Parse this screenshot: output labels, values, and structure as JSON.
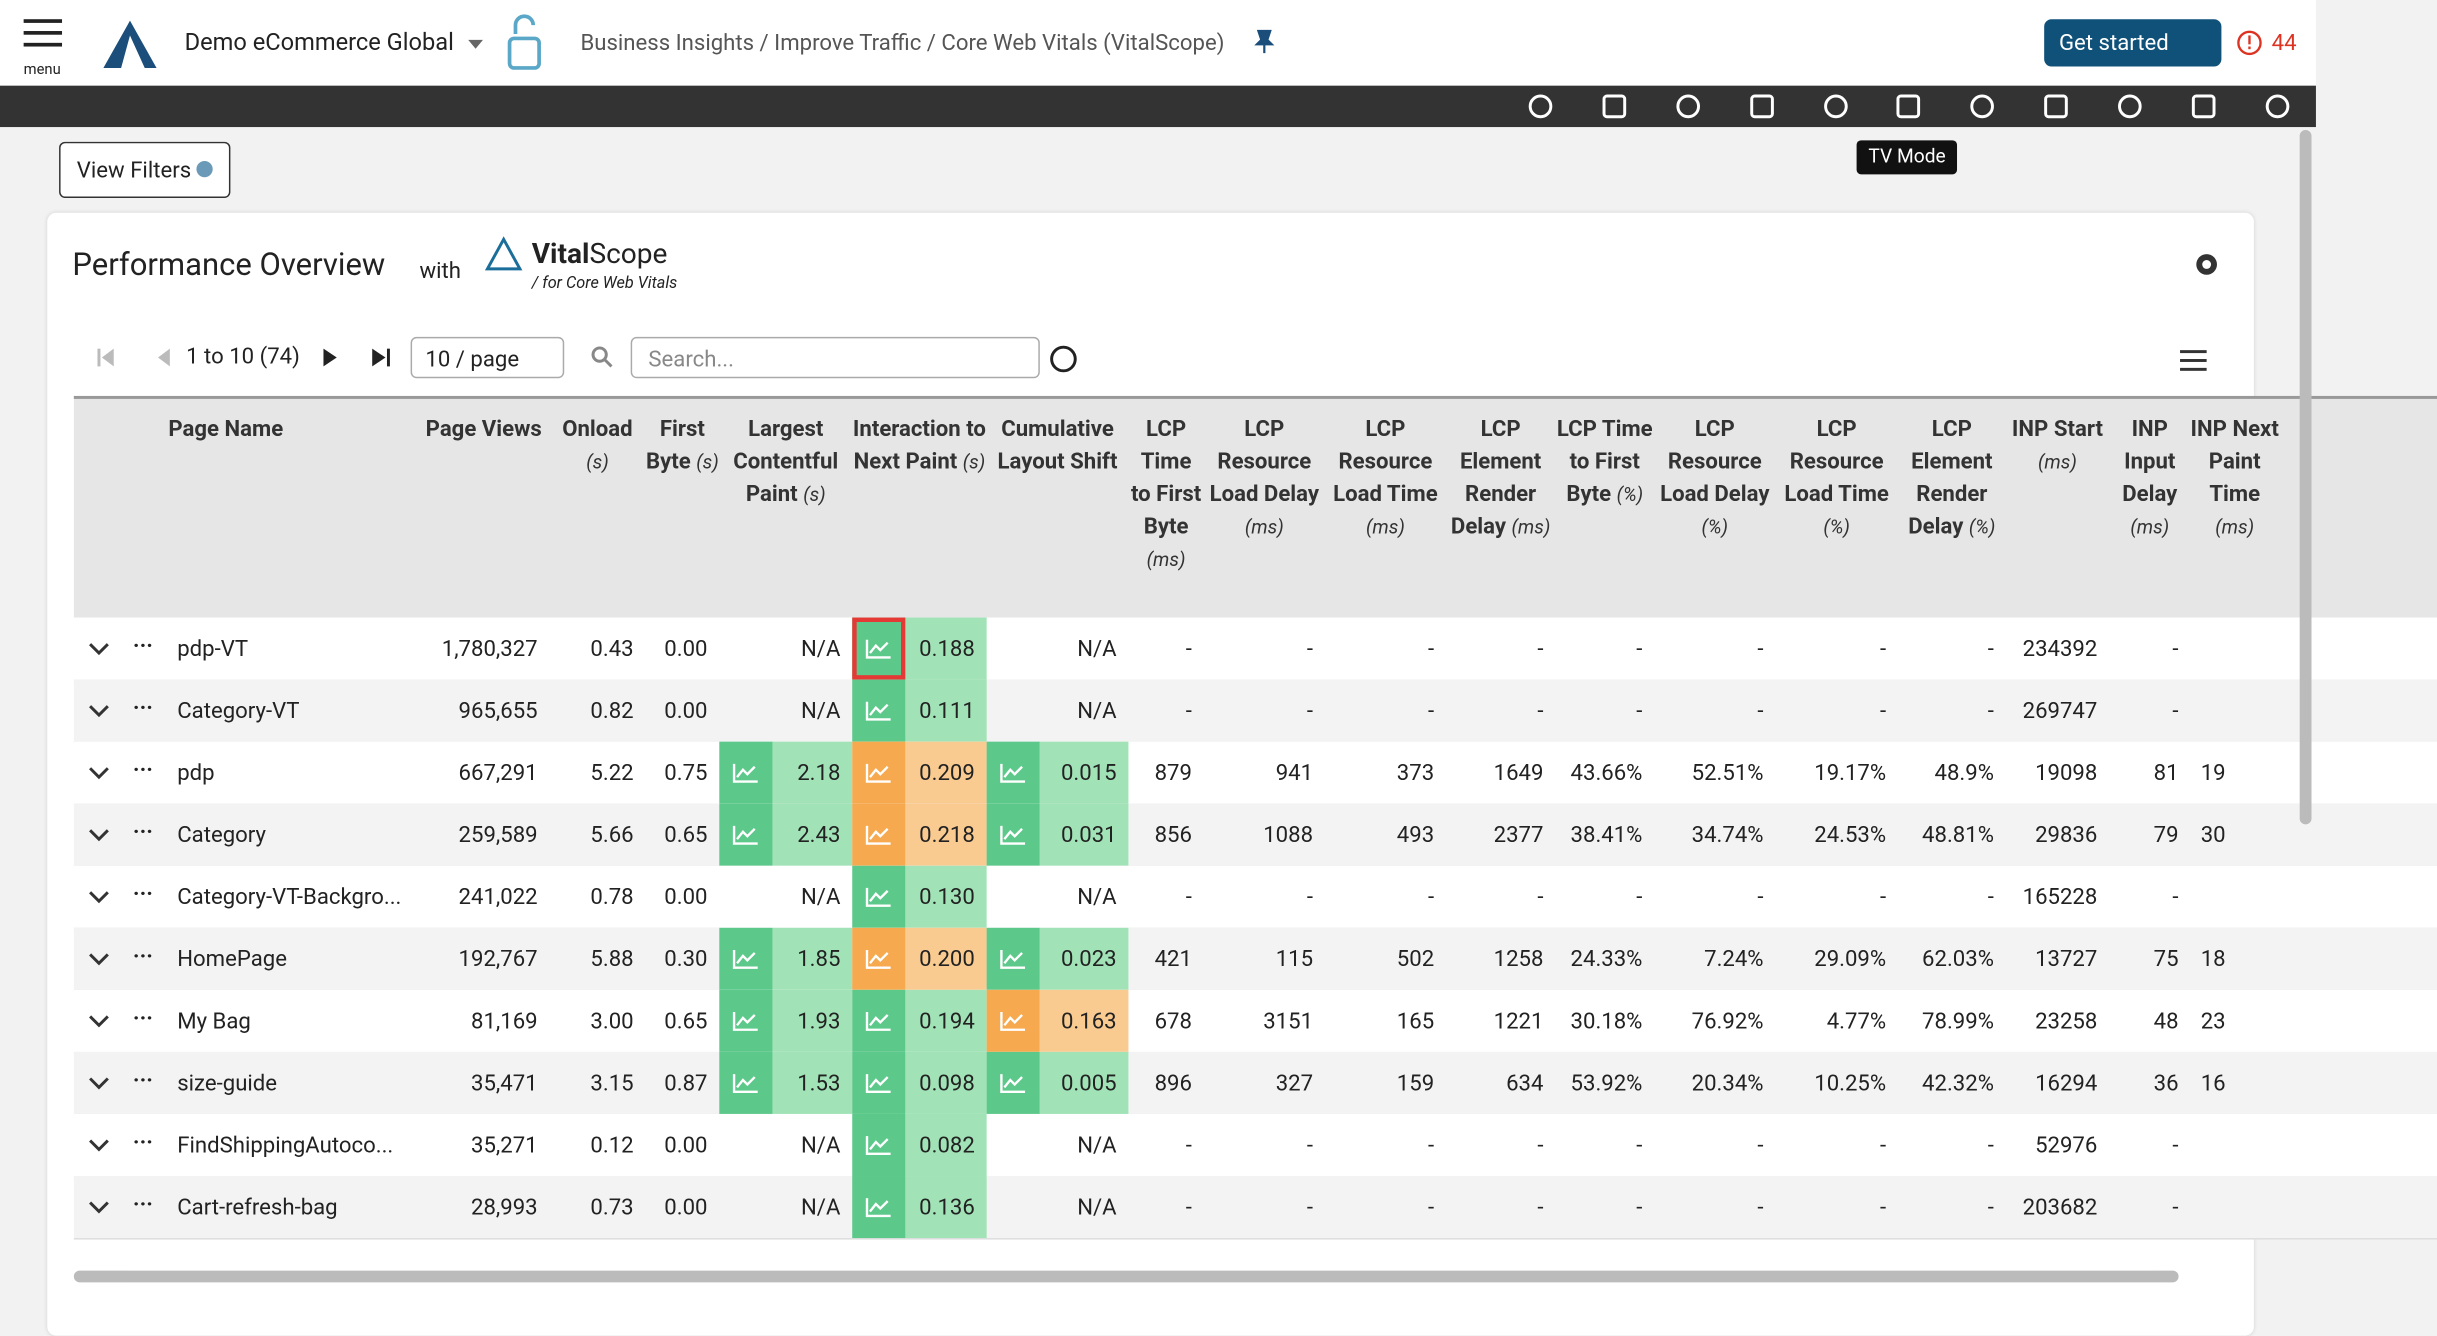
{
  "header": {
    "menu_label": "menu",
    "org": "Demo eCommerce Global",
    "breadcrumb": "Business Insights / Improve Traffic / Core Web Vitals (VitalScope)",
    "get_started": "Get started",
    "alert_count": "44"
  },
  "toolbar": {
    "tooltip": "TV Mode"
  },
  "view_filters": "View Filters",
  "panel": {
    "title": "Performance Overview",
    "with": "with",
    "brand_bold": "Vital",
    "brand_light": "Scope",
    "brand_sub": "/ for Core Web Vitals"
  },
  "pagination": {
    "range": "1 to 10 (74)",
    "page_size": "10 / page",
    "search_placeholder": "Search..."
  },
  "table": {
    "columns": [
      {
        "label": "Page Name"
      },
      {
        "label": "Page Views"
      },
      {
        "label": "Onload",
        "unit": "(s)"
      },
      {
        "label": "First Byte",
        "unit": "(s)"
      },
      {
        "label": "Largest Contentful Paint",
        "unit": "(s)"
      },
      {
        "label": "Interaction to Next Paint",
        "unit": "(s)"
      },
      {
        "label": "Cumulative Layout Shift"
      },
      {
        "label": "LCP Time to First Byte",
        "unit": "(ms)"
      },
      {
        "label": "LCP Resource Load Delay",
        "unit": "(ms)"
      },
      {
        "label": "LCP Resource Load Time",
        "unit": "(ms)"
      },
      {
        "label": "LCP Element Render Delay",
        "unit": "(ms)"
      },
      {
        "label": "LCP Time to First Byte",
        "unit": "(%)"
      },
      {
        "label": "LCP Resource Load Delay",
        "unit": "(%)"
      },
      {
        "label": "LCP Resource Load Time",
        "unit": "(%)"
      },
      {
        "label": "LCP Element Render Delay",
        "unit": "(%)"
      },
      {
        "label": "INP Start",
        "unit": "(ms)"
      },
      {
        "label": "INP Input Delay",
        "unit": "(ms)"
      },
      {
        "label": "INP Next Paint Time",
        "unit": "(ms)"
      }
    ],
    "rows": [
      {
        "name": "pdp-VT",
        "cells": [
          "1,780,327",
          "0.43",
          "0.00",
          "N/A",
          "0.188",
          "N/A",
          "-",
          "-",
          "-",
          "-",
          "-",
          "-",
          "-",
          "-",
          "234392",
          "-",
          null
        ],
        "status": {
          "inp": "good"
        }
      },
      {
        "name": "Category-VT",
        "cells": [
          "965,655",
          "0.82",
          "0.00",
          "N/A",
          "0.111",
          "N/A",
          "-",
          "-",
          "-",
          "-",
          "-",
          "-",
          "-",
          "-",
          "269747",
          "-",
          null
        ],
        "status": {
          "inp": "good"
        }
      },
      {
        "name": "pdp",
        "cells": [
          "667,291",
          "5.22",
          "0.75",
          "2.18",
          "0.209",
          "0.015",
          "879",
          "941",
          "373",
          "1649",
          "43.66%",
          "52.51%",
          "19.17%",
          "48.9%",
          "19098",
          "81",
          "19"
        ],
        "status": {
          "lcp": "good",
          "inp": "warn",
          "cls": "good"
        }
      },
      {
        "name": "Category",
        "cells": [
          "259,589",
          "5.66",
          "0.65",
          "2.43",
          "0.218",
          "0.031",
          "856",
          "1088",
          "493",
          "2377",
          "38.41%",
          "34.74%",
          "24.53%",
          "48.81%",
          "29836",
          "79",
          "30"
        ],
        "status": {
          "lcp": "good",
          "inp": "warn",
          "cls": "good"
        }
      },
      {
        "name": "Category-VT-Backgro...",
        "cells": [
          "241,022",
          "0.78",
          "0.00",
          "N/A",
          "0.130",
          "N/A",
          "-",
          "-",
          "-",
          "-",
          "-",
          "-",
          "-",
          "-",
          "165228",
          "-",
          null
        ],
        "status": {
          "inp": "good"
        }
      },
      {
        "name": "HomePage",
        "cells": [
          "192,767",
          "5.88",
          "0.30",
          "1.85",
          "0.200",
          "0.023",
          "421",
          "115",
          "502",
          "1258",
          "24.33%",
          "7.24%",
          "29.09%",
          "62.03%",
          "13727",
          "75",
          "18"
        ],
        "status": {
          "lcp": "good",
          "inp": "warn",
          "cls": "good"
        }
      },
      {
        "name": "My Bag",
        "cells": [
          "81,169",
          "3.00",
          "0.65",
          "1.93",
          "0.194",
          "0.163",
          "678",
          "3151",
          "165",
          "1221",
          "30.18%",
          "76.92%",
          "4.77%",
          "78.99%",
          "23258",
          "48",
          "23"
        ],
        "status": {
          "lcp": "good",
          "inp": "good",
          "cls": "warn"
        }
      },
      {
        "name": "size-guide",
        "cells": [
          "35,471",
          "3.15",
          "0.87",
          "1.53",
          "0.098",
          "0.005",
          "896",
          "327",
          "159",
          "634",
          "53.92%",
          "20.34%",
          "10.25%",
          "42.32%",
          "16294",
          "36",
          "16"
        ],
        "status": {
          "lcp": "good",
          "inp": "good",
          "cls": "good"
        }
      },
      {
        "name": "FindShippingAutoco...",
        "cells": [
          "35,271",
          "0.12",
          "0.00",
          "N/A",
          "0.082",
          "N/A",
          "-",
          "-",
          "-",
          "-",
          "-",
          "-",
          "-",
          "-",
          "52976",
          "-",
          null
        ],
        "status": {
          "inp": "good"
        }
      },
      {
        "name": "Cart-refresh-bag",
        "cells": [
          "28,993",
          "0.73",
          "0.00",
          "N/A",
          "0.136",
          "N/A",
          "-",
          "-",
          "-",
          "-",
          "-",
          "-",
          "-",
          "-",
          "203682",
          "-",
          null
        ],
        "status": {
          "inp": "good"
        }
      }
    ]
  }
}
